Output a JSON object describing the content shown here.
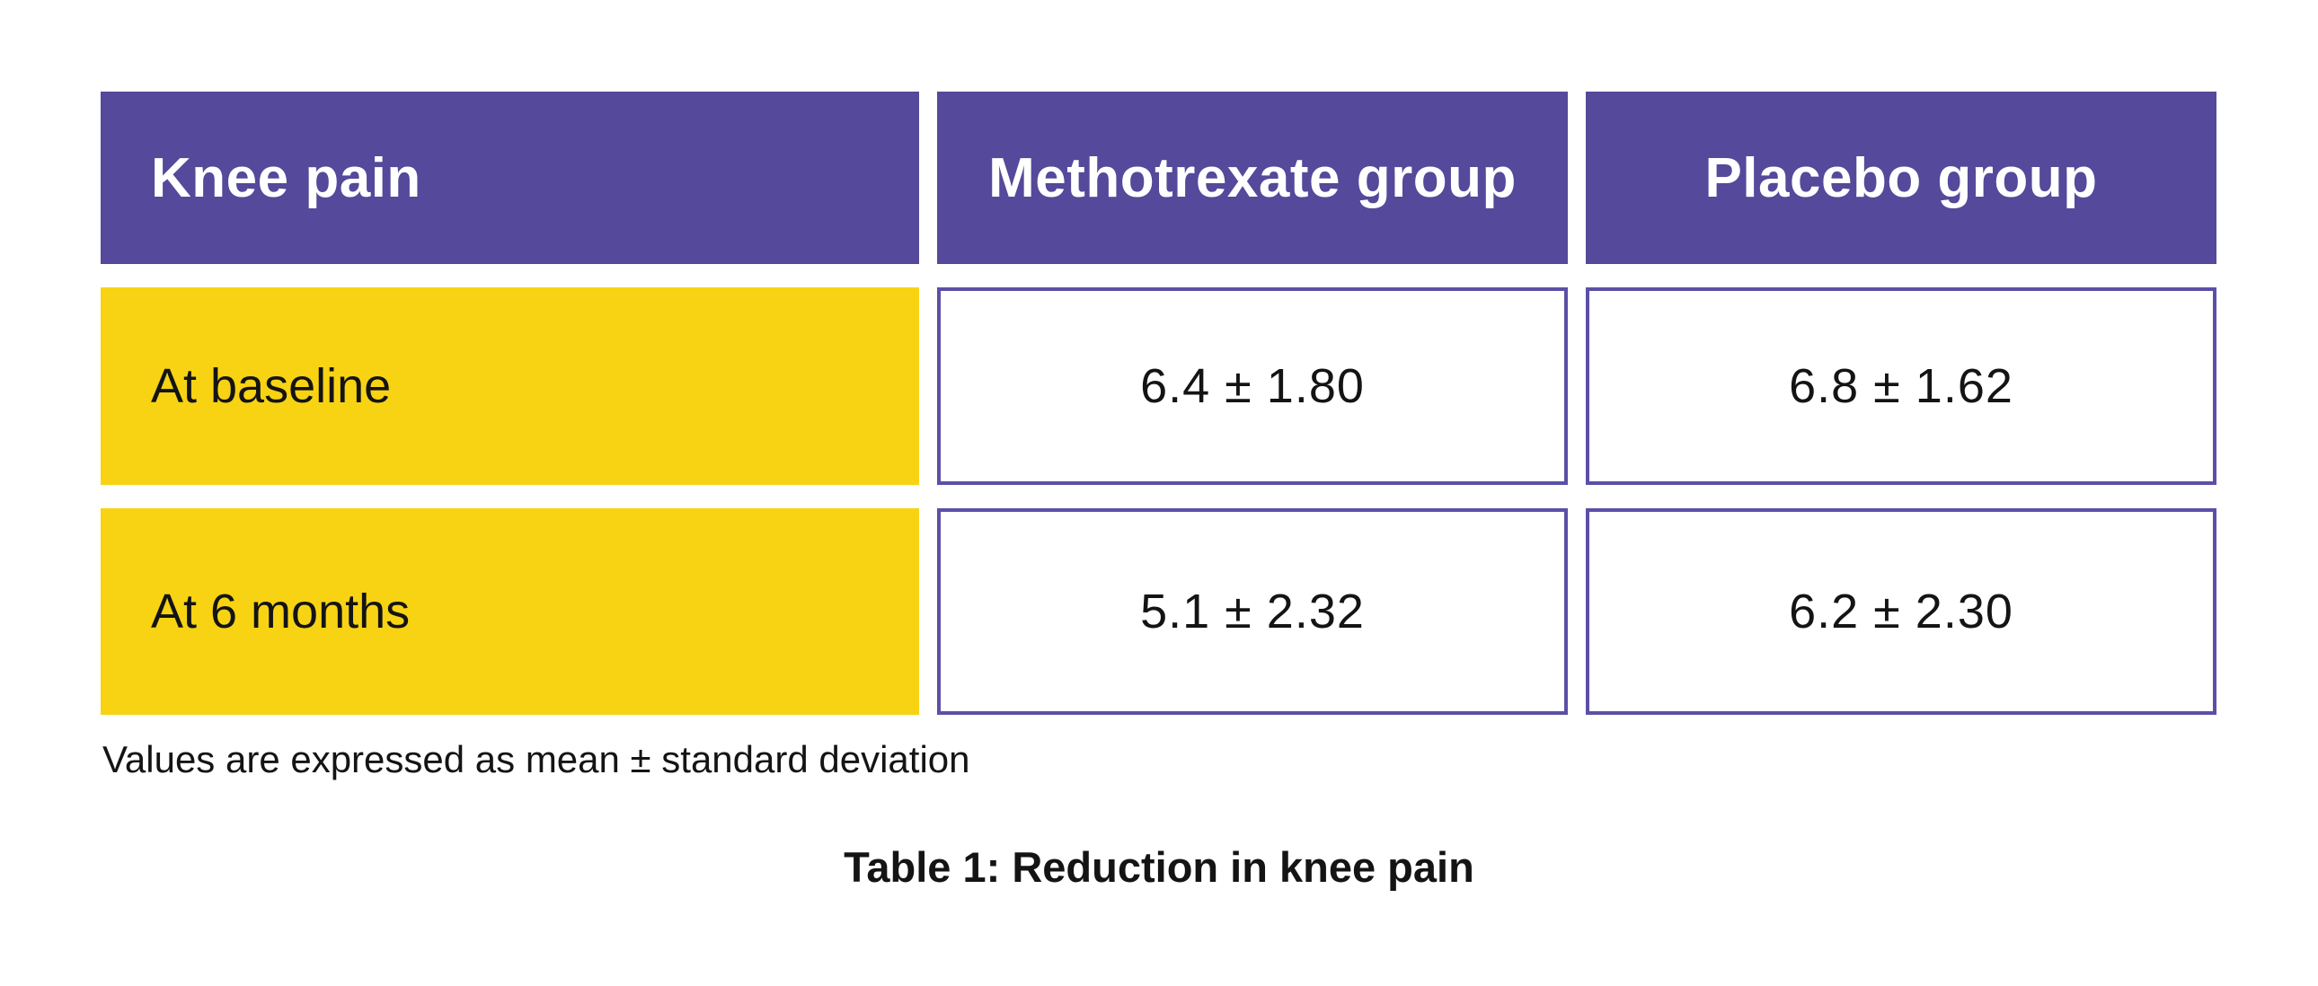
{
  "colors": {
    "background": "#FFFFFF",
    "header_bg": "#54499A",
    "header_text": "#FFFFFF",
    "row_label_bg": "#F8D313",
    "cell_border": "#5B50A7",
    "value_bg": "#FFFFFF",
    "body_text": "#141414"
  },
  "table": {
    "columns": [
      {
        "label": "Knee pain"
      },
      {
        "label": "Methotrexate group"
      },
      {
        "label": "Placebo group"
      }
    ],
    "rows": [
      {
        "label": "At baseline",
        "values": [
          "6.4 ± 1.80",
          "6.8 ± 1.62"
        ]
      },
      {
        "label": "At 6 months",
        "values": [
          "5.1 ± 2.32",
          "6.2 ± 2.30"
        ]
      }
    ]
  },
  "footnote": "Values are expressed as mean ± standard deviation",
  "caption": "Table 1: Reduction in knee pain",
  "chart_data": {
    "type": "table",
    "title": "Table 1: Reduction in knee pain",
    "columns": [
      "Knee pain",
      "Methotrexate group",
      "Placebo group"
    ],
    "rows": [
      [
        "At baseline",
        "6.4 ± 1.80",
        "6.8 ± 1.62"
      ],
      [
        "At 6 months",
        "5.1 ± 2.32",
        "6.2 ± 2.30"
      ]
    ],
    "series": [
      {
        "name": "Methotrexate group",
        "categories": [
          "At baseline",
          "At 6 months"
        ],
        "mean": [
          6.4,
          5.1
        ],
        "sd": [
          1.8,
          2.32
        ]
      },
      {
        "name": "Placebo group",
        "categories": [
          "At baseline",
          "At 6 months"
        ],
        "mean": [
          6.8,
          6.2
        ],
        "sd": [
          1.62,
          2.3
        ]
      }
    ],
    "footnote": "Values are expressed as mean ± standard deviation"
  }
}
